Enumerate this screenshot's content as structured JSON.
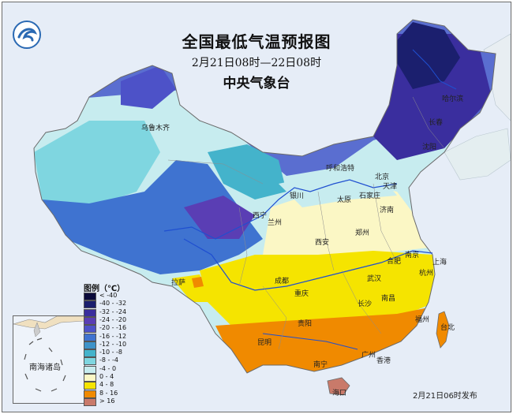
{
  "title": "全国最低气温预报图",
  "time_range": "2月21日08时—22日08时",
  "agency": "中央气象台",
  "legend": {
    "title": "图例（℃）",
    "items": [
      {
        "label": "< -40",
        "color": "#0a0a3a"
      },
      {
        "label": "-40 - -32",
        "color": "#1b1f6e"
      },
      {
        "label": "-32 - -24",
        "color": "#3a2e9e"
      },
      {
        "label": "-24 - -20",
        "color": "#5a3eb4"
      },
      {
        "label": "-20 - -16",
        "color": "#4d52c8"
      },
      {
        "label": "-16 - -12",
        "color": "#3f73d0"
      },
      {
        "label": "-12 - -10",
        "color": "#3e93c9"
      },
      {
        "label": "-10 - -8",
        "color": "#44b3cb"
      },
      {
        "label": "-8 - -4",
        "color": "#7fd6e0"
      },
      {
        "label": "-4 - 0",
        "color": "#c7ecef"
      },
      {
        "label": "0 - 4",
        "color": "#fbf7c5"
      },
      {
        "label": "4 - 8",
        "color": "#f5e400"
      },
      {
        "label": "8 - 16",
        "color": "#f08a00"
      },
      {
        "label": "> 16",
        "color": "#c97a6a"
      }
    ]
  },
  "cities": [
    {
      "name": "哈尔滨"
    },
    {
      "name": "长春"
    },
    {
      "name": "沈阳"
    },
    {
      "name": "北京"
    },
    {
      "name": "天津"
    },
    {
      "name": "呼和浩特"
    },
    {
      "name": "太原"
    },
    {
      "name": "石家庄"
    },
    {
      "name": "济南"
    },
    {
      "name": "郑州"
    },
    {
      "name": "银川"
    },
    {
      "name": "兰州"
    },
    {
      "name": "西宁"
    },
    {
      "name": "乌鲁木齐"
    },
    {
      "name": "西安"
    },
    {
      "name": "合肥"
    },
    {
      "name": "南京"
    },
    {
      "name": "上海"
    },
    {
      "name": "武汉"
    },
    {
      "name": "杭州"
    },
    {
      "name": "成都"
    },
    {
      "name": "重庆"
    },
    {
      "name": "长沙"
    },
    {
      "name": "南昌"
    },
    {
      "name": "拉萨"
    },
    {
      "name": "贵阳"
    },
    {
      "name": "昆明"
    },
    {
      "name": "福州"
    },
    {
      "name": "台北"
    },
    {
      "name": "南宁"
    },
    {
      "name": "广州"
    },
    {
      "name": "香港"
    },
    {
      "name": "海口"
    }
  ],
  "inset_label": "南海诸岛",
  "release_time": "2月21日06时发布",
  "colors": {
    "sea": "#e6edf7",
    "border": "#6b6b6b",
    "river": "#1f4fd0"
  }
}
